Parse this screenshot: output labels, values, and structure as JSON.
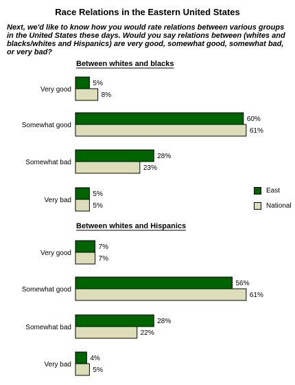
{
  "chart_data": {
    "type": "bar",
    "orientation": "horizontal",
    "title": "Race Relations in the Eastern United States",
    "question": "Next, we'd like to know how you would rate relations between various groups in the United States these days. Would you say relations between (whites and blacks/whites and Hispanics) are very good, somewhat good, somewhat bad, or very bad?",
    "categories": [
      "Very good",
      "Somewhat good",
      "Somewhat bad",
      "Very bad"
    ],
    "value_suffix": "%",
    "xlim": [
      0,
      65
    ],
    "grid": false,
    "legend_position": "right",
    "colors": {
      "East": "#006400",
      "National": "#ddddb9"
    },
    "groups": [
      {
        "title": "Between whites and blacks",
        "series": [
          {
            "name": "East",
            "values": [
              5,
              60,
              28,
              5
            ]
          },
          {
            "name": "National",
            "values": [
              8,
              61,
              23,
              5
            ]
          }
        ]
      },
      {
        "title": "Between whites and Hispanics",
        "series": [
          {
            "name": "East",
            "values": [
              7,
              56,
              28,
              4
            ]
          },
          {
            "name": "National",
            "values": [
              7,
              61,
              22,
              5
            ]
          }
        ]
      }
    ]
  }
}
